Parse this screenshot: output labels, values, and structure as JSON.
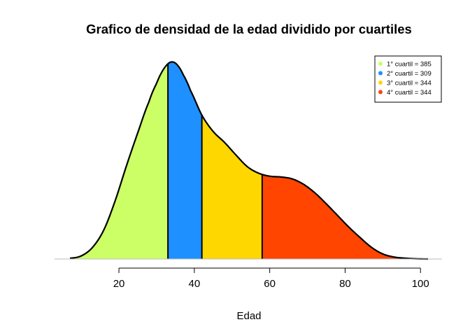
{
  "chart_data": {
    "type": "area",
    "title": "Grafico de densidad de la edad dividido por cuartiles",
    "xlabel": "Edad",
    "ylabel": "",
    "xlim": [
      7,
      102
    ],
    "x_ticks": [
      20,
      40,
      60,
      80,
      100
    ],
    "y_axis_shown": false,
    "grid": false,
    "legend_position": "top-right",
    "density_curve": {
      "x": [
        7,
        10,
        13,
        16,
        19,
        22,
        25,
        28,
        30,
        31.5,
        33,
        34.2,
        35.5,
        37,
        39,
        42,
        45,
        48,
        51,
        54,
        57,
        60,
        63,
        66,
        69,
        72,
        75,
        78,
        81,
        84,
        87,
        90,
        93,
        96,
        99,
        102
      ],
      "y": [
        0.0002,
        0.0008,
        0.003,
        0.0075,
        0.015,
        0.024,
        0.0325,
        0.0405,
        0.0452,
        0.0483,
        0.0502,
        0.0507,
        0.0499,
        0.0475,
        0.0433,
        0.037,
        0.0328,
        0.03,
        0.0268,
        0.0238,
        0.0221,
        0.0213,
        0.0211,
        0.0206,
        0.0192,
        0.017,
        0.0142,
        0.0112,
        0.0082,
        0.0055,
        0.003,
        0.0013,
        0.0005,
        0.0002,
        5e-05,
        0.0
      ],
      "ylim": [
        0,
        0.0515
      ]
    },
    "quartile_breaks": [
      33,
      42,
      58
    ],
    "series": [
      {
        "name": "1° cuartil = 385",
        "from": 7,
        "to": 33,
        "color": "#CCFF66"
      },
      {
        "name": "2° cuartil = 309",
        "from": 33,
        "to": 42,
        "color": "#1E90FF"
      },
      {
        "name": "3° cuartil = 344",
        "from": 42,
        "to": 58,
        "color": "#FFD700"
      },
      {
        "name": "4° cuartil = 344",
        "from": 58,
        "to": 102,
        "color": "#FF4500"
      }
    ]
  }
}
